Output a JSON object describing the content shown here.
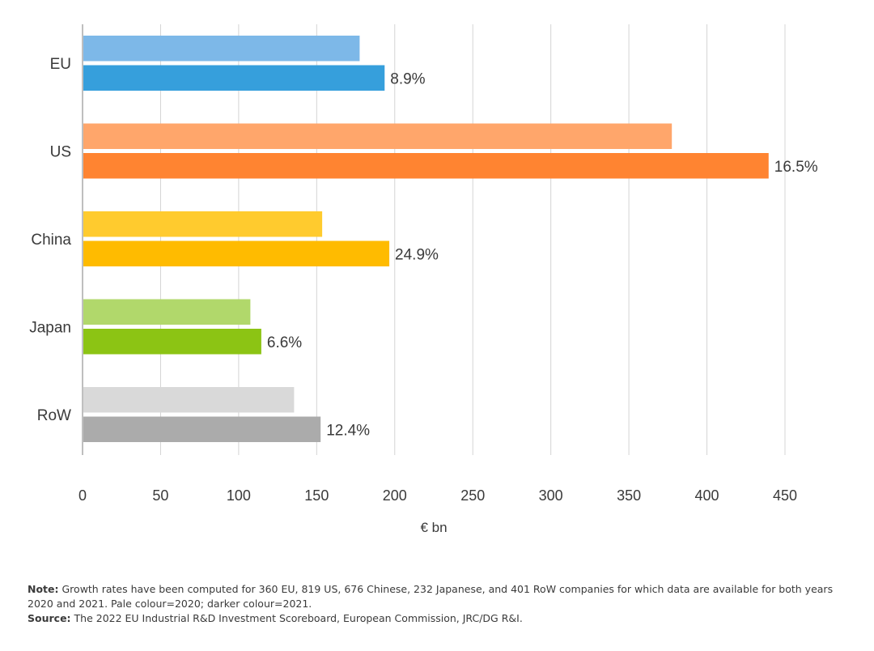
{
  "chart_data": {
    "type": "bar",
    "orientation": "horizontal",
    "categories": [
      "EU",
      "US",
      "China",
      "Japan",
      "RoW"
    ],
    "series": [
      {
        "name": "2020",
        "values": [
          177,
          377,
          153,
          107,
          135
        ],
        "colors": [
          "#7db8e8",
          "#ffa66b",
          "#ffcb2e",
          "#b1d86b",
          "#d9d9d9"
        ]
      },
      {
        "name": "2021",
        "values": [
          193,
          439,
          196,
          114,
          152
        ],
        "colors": [
          "#369fdc",
          "#ff8431",
          "#ffbb00",
          "#8cc414",
          "#ababab"
        ]
      }
    ],
    "growth_labels": [
      "8.9%",
      "16.5%",
      "24.9%",
      "6.6%",
      "12.4%"
    ],
    "x_ticks": [
      0,
      50,
      100,
      150,
      200,
      250,
      300,
      350,
      400,
      450
    ],
    "xlim": [
      0,
      450
    ],
    "xlabel": "€ bn",
    "grid": true
  },
  "notes": {
    "note_label": "Note:",
    "note_text": " Growth rates have been computed for 360 EU, 819 US, 676 Chinese, 232 Japanese, and 401 RoW companies for which data are available for both years 2020 and 2021. Pale colour=2020; darker colour=2021.",
    "source_label": "Source:",
    "source_text": " The 2022 EU Industrial R&D Investment Scoreboard, European Commission, JRC/DG R&I."
  }
}
